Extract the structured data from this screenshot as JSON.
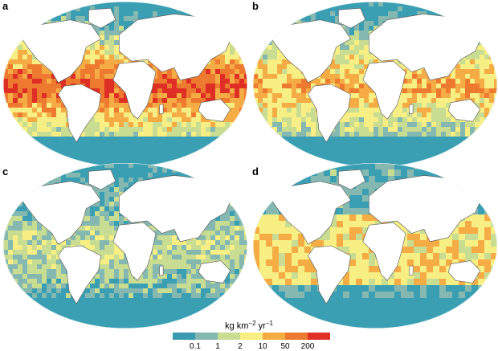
{
  "panels": [
    {
      "letter": "a",
      "intensity": 0.95
    },
    {
      "letter": "b",
      "intensity": 0.7
    },
    {
      "letter": "c",
      "intensity": 0.35
    },
    {
      "letter": "d",
      "intensity": 0.55
    }
  ],
  "legend": {
    "unit_base": "kg km",
    "unit_exp1": "−2",
    "unit_mid": " yr",
    "unit_exp2": "−1",
    "ticks": [
      "0.1",
      "1",
      "2",
      "10",
      "50",
      "200"
    ],
    "colors": [
      "#3a9ab0",
      "#84b8b0",
      "#c8dc92",
      "#f7ef84",
      "#f6ac45",
      "#ee7a2f",
      "#df2f24"
    ]
  },
  "colors": {
    "ocean_base": "#3b9fb3",
    "land": "#ffffff",
    "border": "#555555"
  }
}
